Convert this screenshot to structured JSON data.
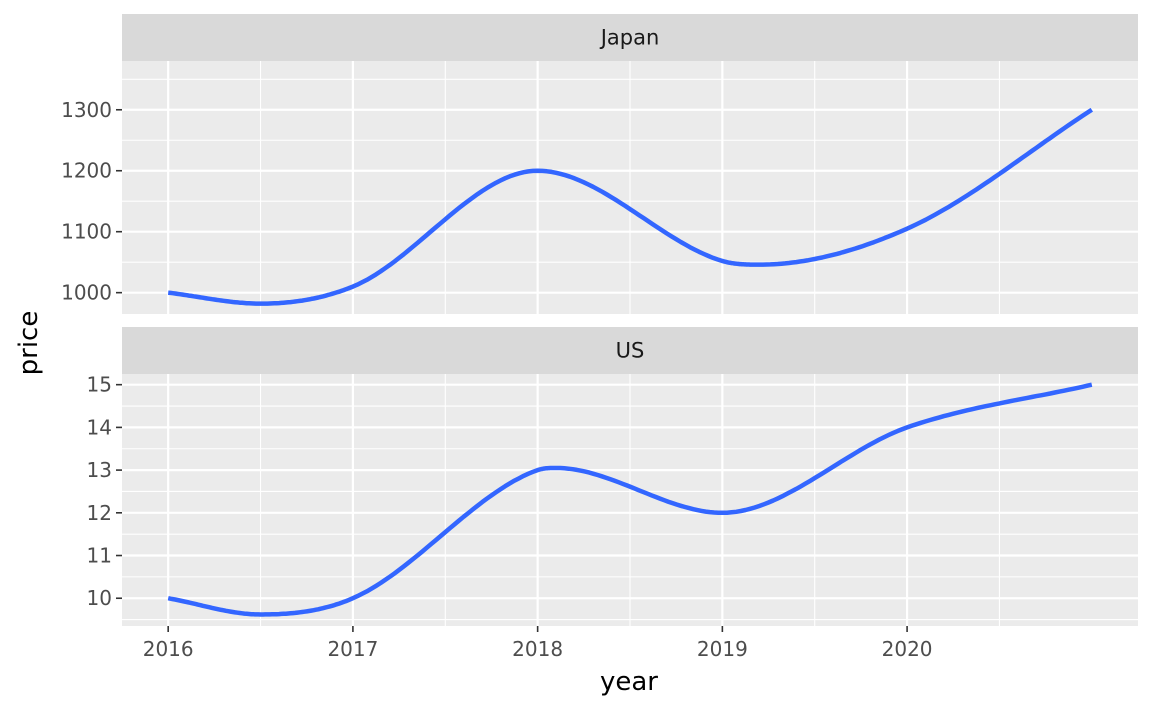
{
  "chart_data": {
    "type": "line",
    "xlabel": "year",
    "ylabel": "price",
    "x_ticks": [
      2016,
      2017,
      2018,
      2019,
      2020
    ],
    "xlim": [
      2015.75,
      2021.25
    ],
    "grid": true,
    "line_color": "#3366FF",
    "panel_background": "#EBEBEB",
    "strip_background": "#D9D9D9",
    "panels": [
      {
        "name": "Japan",
        "ylim": [
          965,
          1380
        ],
        "y_ticks": [
          1000,
          1100,
          1200,
          1300
        ],
        "x": [
          2016,
          2016.5,
          2017,
          2018,
          2019,
          2019.2,
          2020,
          2021
        ],
        "values": [
          1000,
          982,
          1010,
          1200,
          1052,
          1046,
          1105,
          1300
        ]
      },
      {
        "name": "US",
        "ylim": [
          9.35,
          15.25
        ],
        "y_ticks": [
          10,
          11,
          12,
          13,
          14,
          15
        ],
        "x": [
          2016,
          2016.5,
          2017,
          2018,
          2018.1,
          2019,
          2020,
          2021
        ],
        "values": [
          10,
          9.62,
          10,
          13,
          13.05,
          12,
          14,
          15
        ]
      }
    ]
  }
}
